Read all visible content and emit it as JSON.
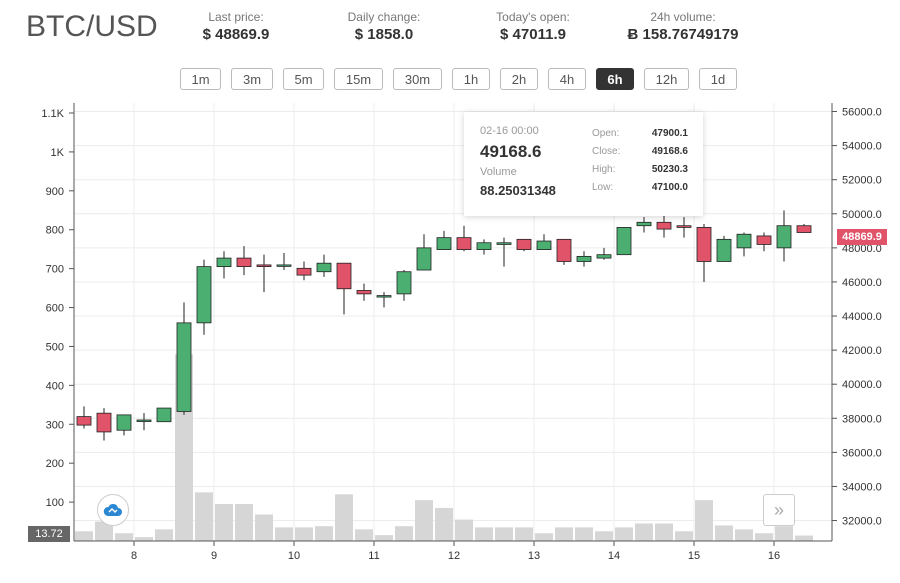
{
  "header": {
    "pair": "BTC/USD",
    "stats": [
      {
        "label": "Last price:",
        "value": "$ 48869.9"
      },
      {
        "label": "Daily change:",
        "value": "$ 1858.0"
      },
      {
        "label": "Today's open:",
        "value": "$ 47011.9"
      },
      {
        "label": "24h volume:",
        "value": "Ƀ 158.76749179"
      }
    ]
  },
  "timeframes": {
    "items": [
      "1m",
      "3m",
      "5m",
      "15m",
      "30m",
      "1h",
      "2h",
      "4h",
      "6h",
      "12h",
      "1d"
    ],
    "active": "6h"
  },
  "tooltip": {
    "date": "02-16 00:00",
    "close_big": "49168.6",
    "volume_label": "Volume",
    "volume": "88.25031348",
    "rows": [
      {
        "k": "Open:",
        "v": "47900.1"
      },
      {
        "k": "Close:",
        "v": "49168.6"
      },
      {
        "k": "High:",
        "v": "50230.3"
      },
      {
        "k": "Low:",
        "v": "47100.0"
      }
    ]
  },
  "badges": {
    "last_price": "48869.9",
    "volume_marker": "13.72"
  },
  "icons": {
    "cloud": "cloud-icon",
    "scroll_right": "double-chevron-right-icon"
  },
  "colors": {
    "up": "#4caf72",
    "down": "#e05369",
    "volume": "#d6d6d6",
    "grid": "#ececec"
  },
  "chart_data": {
    "type": "candlestick",
    "x_ticks": [
      "8",
      "9",
      "10",
      "11",
      "12",
      "13",
      "14",
      "15",
      "16"
    ],
    "price_ticks": [
      "32000.0",
      "34000.0",
      "36000.0",
      "38000.0",
      "40000.0",
      "42000.0",
      "44000.0",
      "46000.0",
      "48000.0",
      "50000.0",
      "52000.0",
      "54000.0",
      "56000.0"
    ],
    "volume_ticks": [
      "100",
      "200",
      "300",
      "400",
      "500",
      "600",
      "700",
      "800",
      "900",
      "1K",
      "1.1K"
    ],
    "price_range": [
      30800,
      56500
    ],
    "volume_range": [
      0,
      1100
    ],
    "candles": [
      {
        "o": 38100,
        "h": 38700,
        "l": 37400,
        "c": 37600,
        "v": 25
      },
      {
        "o": 38300,
        "h": 38600,
        "l": 36700,
        "c": 37200,
        "v": 50
      },
      {
        "o": 37300,
        "h": 38100,
        "l": 37000,
        "c": 38200,
        "v": 20
      },
      {
        "o": 37900,
        "h": 38300,
        "l": 37300,
        "c": 37900,
        "v": 10
      },
      {
        "o": 37800,
        "h": 38600,
        "l": 37800,
        "c": 38600,
        "v": 30
      },
      {
        "o": 38400,
        "h": 44800,
        "l": 38200,
        "c": 43600,
        "v": 480
      },
      {
        "o": 43600,
        "h": 47300,
        "l": 42900,
        "c": 46900,
        "v": 125
      },
      {
        "o": 46900,
        "h": 47800,
        "l": 46200,
        "c": 47400,
        "v": 95
      },
      {
        "o": 47400,
        "h": 48100,
        "l": 46400,
        "c": 46900,
        "v": 95
      },
      {
        "o": 47000,
        "h": 47600,
        "l": 45400,
        "c": 46900,
        "v": 68
      },
      {
        "o": 47000,
        "h": 47700,
        "l": 46700,
        "c": 47000,
        "v": 35
      },
      {
        "o": 46800,
        "h": 47200,
        "l": 46100,
        "c": 46400,
        "v": 35
      },
      {
        "o": 46600,
        "h": 47600,
        "l": 46300,
        "c": 47100,
        "v": 38
      },
      {
        "o": 47100,
        "h": 47100,
        "l": 44100,
        "c": 45600,
        "v": 120
      },
      {
        "o": 45500,
        "h": 45900,
        "l": 44900,
        "c": 45300,
        "v": 30
      },
      {
        "o": 45200,
        "h": 45400,
        "l": 44500,
        "c": 45200,
        "v": 15
      },
      {
        "o": 45300,
        "h": 46700,
        "l": 44900,
        "c": 46600,
        "v": 38
      },
      {
        "o": 46700,
        "h": 48800,
        "l": 46700,
        "c": 48000,
        "v": 105
      },
      {
        "o": 47900,
        "h": 49000,
        "l": 47900,
        "c": 48600,
        "v": 85
      },
      {
        "o": 48600,
        "h": 49300,
        "l": 47800,
        "c": 47900,
        "v": 55
      },
      {
        "o": 47900,
        "h": 48500,
        "l": 47600,
        "c": 48300,
        "v": 35
      },
      {
        "o": 48200,
        "h": 48600,
        "l": 46900,
        "c": 48300,
        "v": 35
      },
      {
        "o": 48500,
        "h": 48500,
        "l": 47800,
        "c": 47900,
        "v": 35
      },
      {
        "o": 47900,
        "h": 48800,
        "l": 47900,
        "c": 48400,
        "v": 20
      },
      {
        "o": 48500,
        "h": 48500,
        "l": 47000,
        "c": 47200,
        "v": 35
      },
      {
        "o": 47200,
        "h": 47800,
        "l": 46900,
        "c": 47500,
        "v": 35
      },
      {
        "o": 47400,
        "h": 48000,
        "l": 47300,
        "c": 47600,
        "v": 25
      },
      {
        "o": 47600,
        "h": 49200,
        "l": 47600,
        "c": 49200,
        "v": 35
      },
      {
        "o": 49300,
        "h": 49800,
        "l": 48900,
        "c": 49500,
        "v": 45
      },
      {
        "o": 49500,
        "h": 50200,
        "l": 48600,
        "c": 49100,
        "v": 45
      },
      {
        "o": 49300,
        "h": 49800,
        "l": 48600,
        "c": 49200,
        "v": 25
      },
      {
        "o": 49200,
        "h": 49400,
        "l": 46000,
        "c": 47200,
        "v": 105
      },
      {
        "o": 47200,
        "h": 48700,
        "l": 47200,
        "c": 48500,
        "v": 40
      },
      {
        "o": 48000,
        "h": 48900,
        "l": 47500,
        "c": 48800,
        "v": 30
      },
      {
        "o": 48700,
        "h": 48900,
        "l": 47800,
        "c": 48200,
        "v": 20
      },
      {
        "o": 48000,
        "h": 50200,
        "l": 47200,
        "c": 49300,
        "v": 38
      },
      {
        "o": 49300,
        "h": 49400,
        "l": 48900,
        "c": 48900,
        "v": 14
      }
    ]
  }
}
